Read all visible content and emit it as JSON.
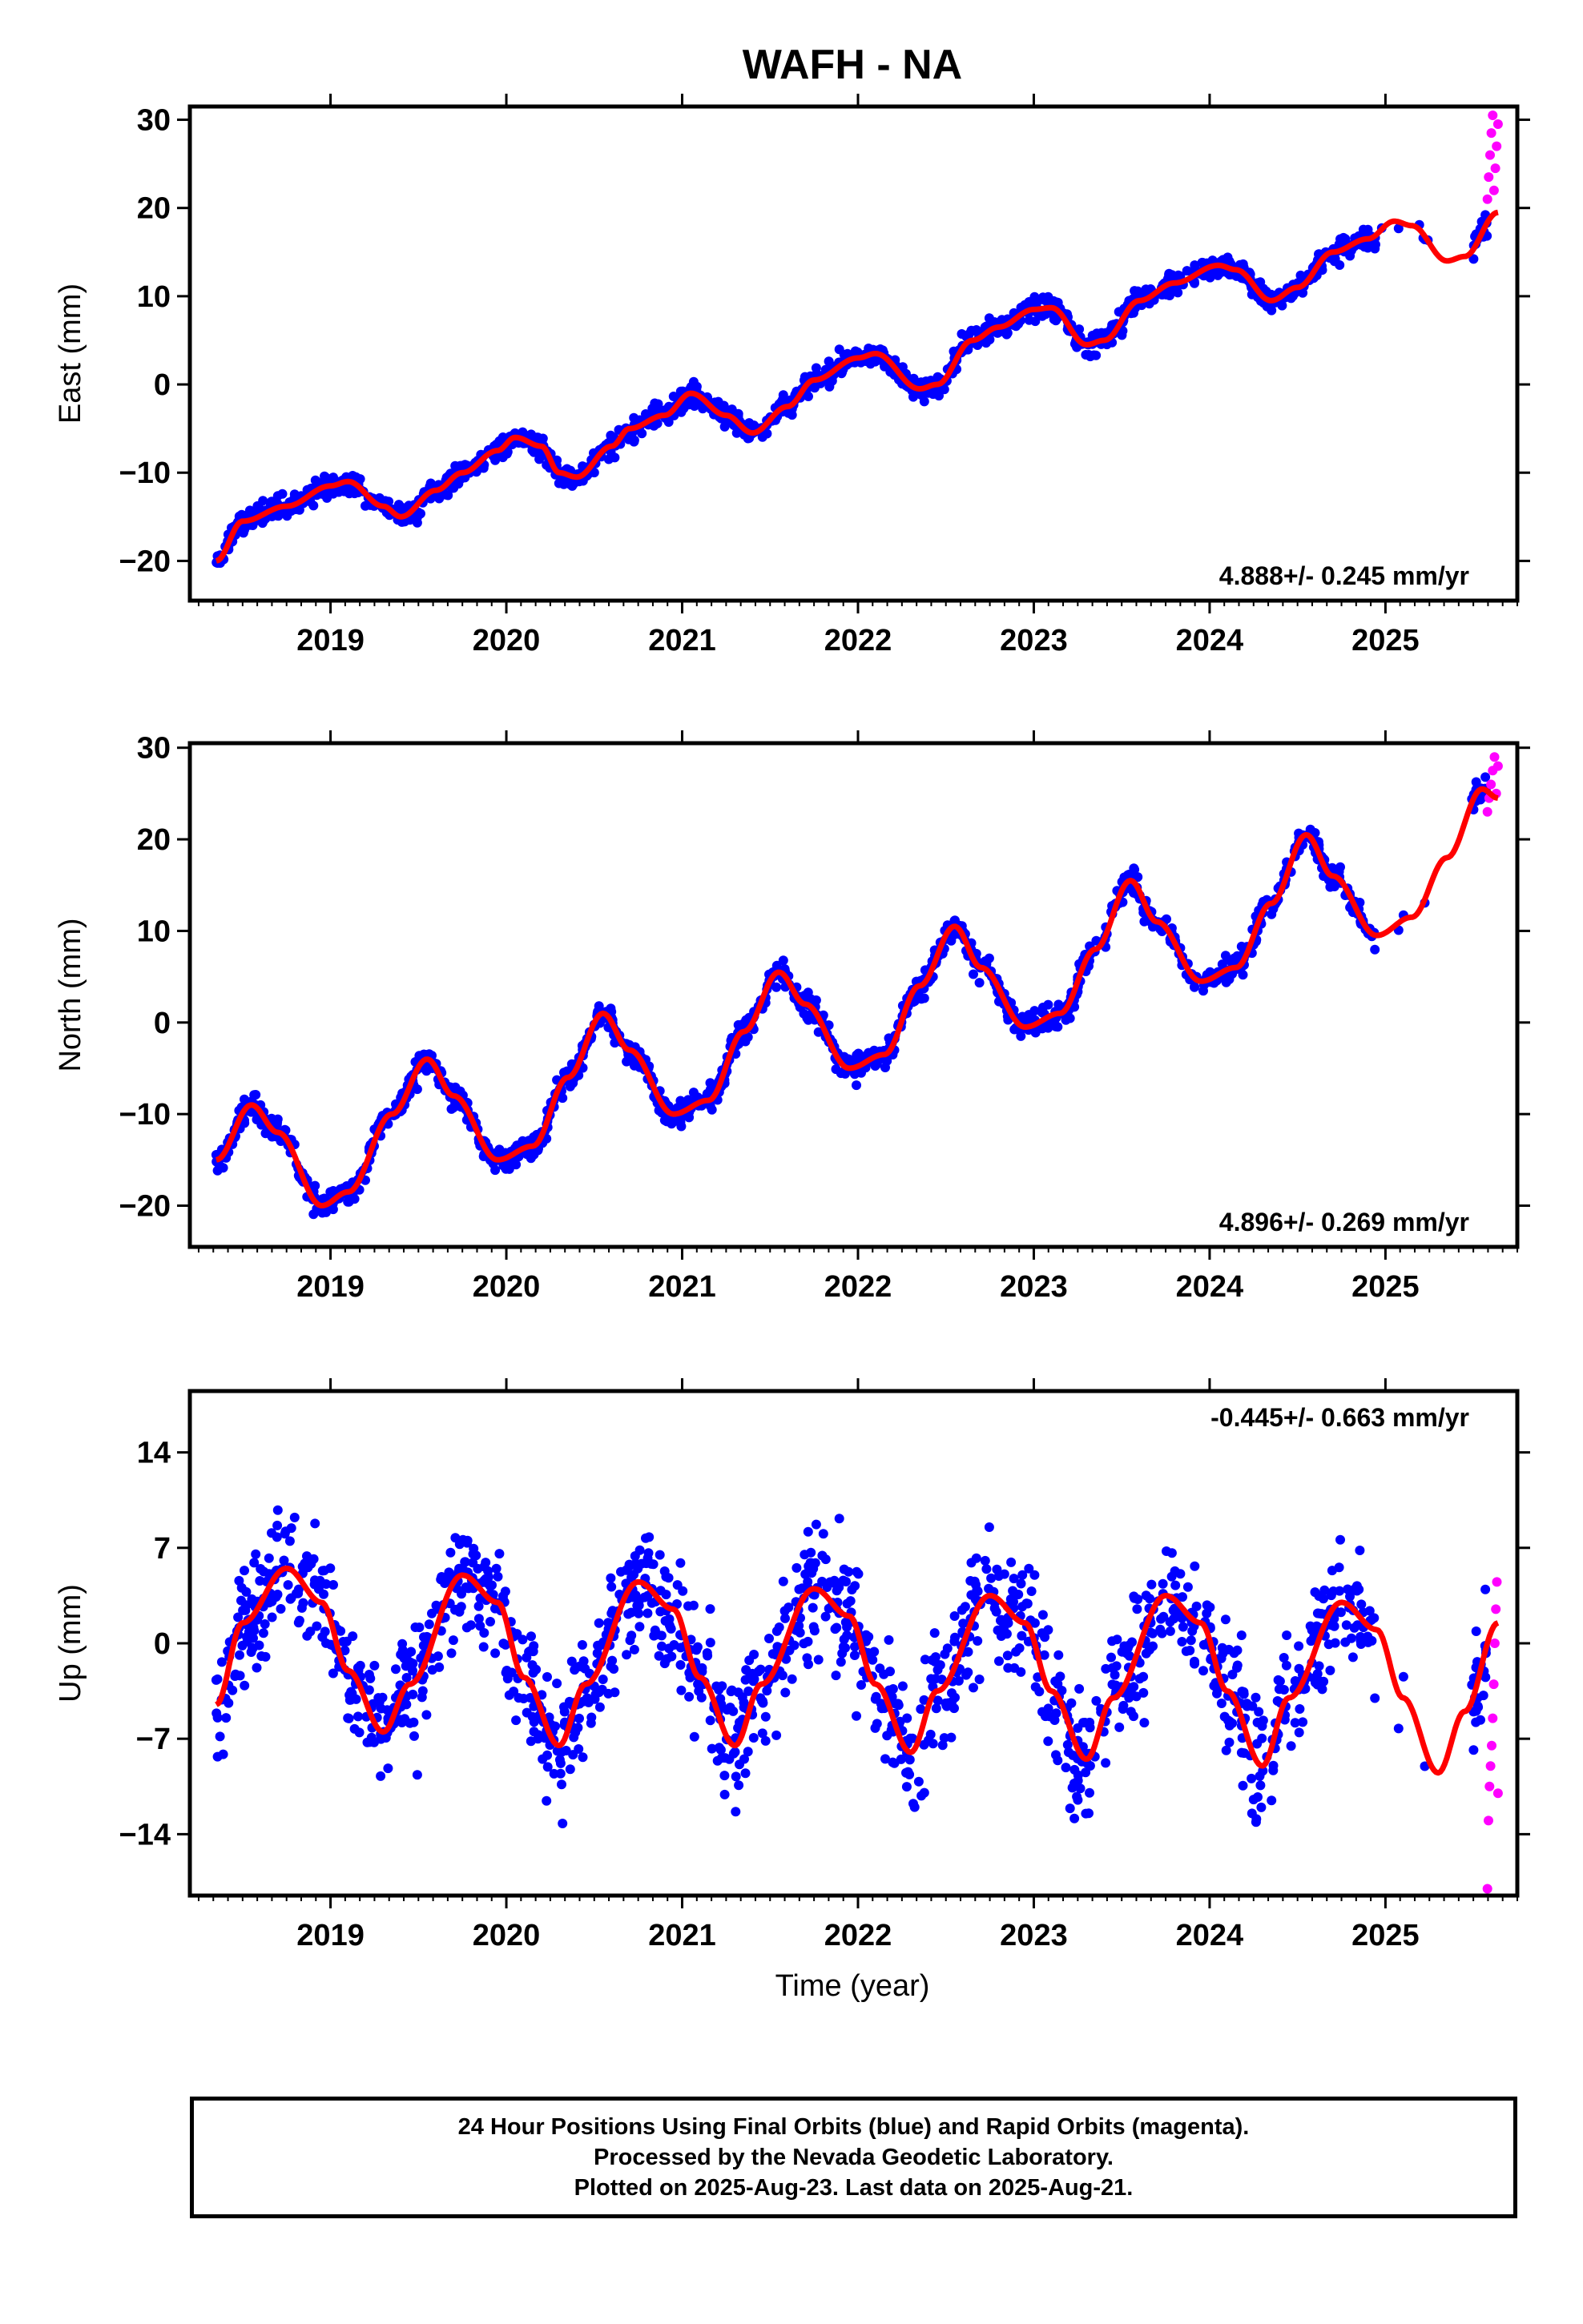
{
  "figure": {
    "title": "WAFH - NA",
    "xlabel": "Time (year)",
    "footer_lines": [
      "24 Hour Positions Using Final Orbits (blue) and Rapid Orbits (magenta).",
      "Processed by the Nevada Geodetic Laboratory.",
      "Plotted on 2025-Aug-23. Last data on 2025-Aug-21."
    ],
    "colors": {
      "final_orbits": "#0000ff",
      "rapid_orbits": "#ff00ff",
      "model_fit": "#ff0000",
      "frame": "#000000"
    }
  },
  "chart_data": [
    {
      "type": "scatter",
      "component": "east",
      "ylabel": "East (mm)",
      "xlim": [
        2018.2,
        2025.75
      ],
      "ylim": [
        -24.5,
        31.5
      ],
      "yticks": [
        -20,
        -10,
        0,
        10,
        20,
        30
      ],
      "xticks": [
        2019,
        2020,
        2021,
        2022,
        2023,
        2024,
        2025
      ],
      "rate_label": "4.888+/- 0.245 mm/yr",
      "rate_position": "bottom-right",
      "data_span": [
        2018.35,
        2025.64
      ],
      "rapid_orbit_span": [
        2025.58,
        2025.64
      ],
      "model_curve": {
        "points": [
          [
            2018.35,
            -20.0
          ],
          [
            2018.5,
            -15.5
          ],
          [
            2018.75,
            -13.8
          ],
          [
            2019.0,
            -11.5
          ],
          [
            2019.1,
            -11.0
          ],
          [
            2019.3,
            -13.8
          ],
          [
            2019.4,
            -15.0
          ],
          [
            2019.6,
            -12.0
          ],
          [
            2019.75,
            -10.0
          ],
          [
            2019.95,
            -7.5
          ],
          [
            2020.05,
            -6.0
          ],
          [
            2020.2,
            -7.0
          ],
          [
            2020.3,
            -10.0
          ],
          [
            2020.4,
            -10.5
          ],
          [
            2020.6,
            -7.0
          ],
          [
            2020.7,
            -5.0
          ],
          [
            2020.9,
            -3.5
          ],
          [
            2021.05,
            -1.0
          ],
          [
            2021.25,
            -3.5
          ],
          [
            2021.4,
            -5.5
          ],
          [
            2021.6,
            -2.5
          ],
          [
            2021.75,
            0.5
          ],
          [
            2022.0,
            3.0
          ],
          [
            2022.1,
            3.5
          ],
          [
            2022.35,
            -0.5
          ],
          [
            2022.45,
            0.0
          ],
          [
            2022.65,
            5.0
          ],
          [
            2022.8,
            6.5
          ],
          [
            2023.0,
            8.5
          ],
          [
            2023.1,
            8.7
          ],
          [
            2023.3,
            4.5
          ],
          [
            2023.4,
            5.0
          ],
          [
            2023.6,
            9.5
          ],
          [
            2023.8,
            11.5
          ],
          [
            2024.05,
            13.5
          ],
          [
            2024.15,
            13.0
          ],
          [
            2024.35,
            9.5
          ],
          [
            2024.5,
            11.0
          ],
          [
            2024.7,
            15.0
          ],
          [
            2024.9,
            16.5
          ],
          [
            2025.05,
            18.5
          ],
          [
            2025.15,
            18.0
          ],
          [
            2025.35,
            14.0
          ],
          [
            2025.45,
            14.5
          ],
          [
            2025.64,
            19.5
          ]
        ]
      },
      "rapid_values": [
        21.0,
        23.5,
        26.0,
        28.5,
        30.5,
        22.0,
        24.5,
        27.0,
        29.5
      ]
    },
    {
      "type": "scatter",
      "component": "north",
      "ylabel": "North (mm)",
      "xlim": [
        2018.2,
        2025.75
      ],
      "ylim": [
        -24.5,
        30.5
      ],
      "yticks": [
        -20,
        -10,
        0,
        10,
        20,
        30
      ],
      "xticks": [
        2019,
        2020,
        2021,
        2022,
        2023,
        2024,
        2025
      ],
      "rate_label": "4.896+/- 0.269 mm/yr",
      "rate_position": "bottom-right",
      "data_span": [
        2018.35,
        2025.64
      ],
      "rapid_orbit_span": [
        2025.58,
        2025.64
      ],
      "model_curve": {
        "points": [
          [
            2018.35,
            -15.0
          ],
          [
            2018.55,
            -9.0
          ],
          [
            2018.7,
            -12.0
          ],
          [
            2018.95,
            -20.0
          ],
          [
            2019.1,
            -18.5
          ],
          [
            2019.35,
            -10.0
          ],
          [
            2019.55,
            -4.0
          ],
          [
            2019.7,
            -8.0
          ],
          [
            2019.95,
            -15.0
          ],
          [
            2020.15,
            -13.5
          ],
          [
            2020.35,
            -6.0
          ],
          [
            2020.55,
            1.0
          ],
          [
            2020.7,
            -3.0
          ],
          [
            2020.95,
            -10.0
          ],
          [
            2021.15,
            -8.5
          ],
          [
            2021.35,
            -1.0
          ],
          [
            2021.55,
            5.5
          ],
          [
            2021.7,
            2.0
          ],
          [
            2021.95,
            -5.0
          ],
          [
            2022.15,
            -3.5
          ],
          [
            2022.35,
            4.0
          ],
          [
            2022.55,
            10.5
          ],
          [
            2022.7,
            6.0
          ],
          [
            2022.95,
            -0.5
          ],
          [
            2023.15,
            1.0
          ],
          [
            2023.35,
            8.0
          ],
          [
            2023.55,
            15.5
          ],
          [
            2023.7,
            11.0
          ],
          [
            2023.95,
            4.5
          ],
          [
            2024.15,
            6.0
          ],
          [
            2024.35,
            13.0
          ],
          [
            2024.55,
            20.5
          ],
          [
            2024.7,
            16.0
          ],
          [
            2024.95,
            9.5
          ],
          [
            2025.15,
            11.5
          ],
          [
            2025.35,
            18.0
          ],
          [
            2025.55,
            25.5
          ],
          [
            2025.64,
            24.5
          ]
        ]
      },
      "rapid_values": [
        23.0,
        24.5,
        26.0,
        27.5,
        29.0,
        25.0,
        28.0
      ]
    },
    {
      "type": "scatter",
      "component": "up",
      "ylabel": "Up (mm)",
      "xlim": [
        2018.2,
        2025.75
      ],
      "ylim": [
        -18.5,
        18.5
      ],
      "yticks": [
        -14,
        -7,
        0,
        7,
        14
      ],
      "xticks": [
        2019,
        2020,
        2021,
        2022,
        2023,
        2024,
        2025
      ],
      "rate_label": "-0.445+/- 0.663 mm/yr",
      "rate_position": "top-right",
      "data_span": [
        2018.35,
        2025.64
      ],
      "rapid_orbit_span": [
        2025.58,
        2025.64
      ],
      "model_curve": {
        "points": [
          [
            2018.35,
            -4.5
          ],
          [
            2018.5,
            1.5
          ],
          [
            2018.75,
            5.5
          ],
          [
            2018.95,
            3.0
          ],
          [
            2019.1,
            -2.0
          ],
          [
            2019.3,
            -6.5
          ],
          [
            2019.45,
            -3.0
          ],
          [
            2019.75,
            5.0
          ],
          [
            2019.95,
            3.0
          ],
          [
            2020.1,
            -2.5
          ],
          [
            2020.3,
            -7.5
          ],
          [
            2020.45,
            -3.0
          ],
          [
            2020.75,
            4.5
          ],
          [
            2020.95,
            2.5
          ],
          [
            2021.1,
            -2.5
          ],
          [
            2021.3,
            -7.5
          ],
          [
            2021.45,
            -3.0
          ],
          [
            2021.75,
            4.0
          ],
          [
            2021.95,
            2.0
          ],
          [
            2022.1,
            -3.0
          ],
          [
            2022.3,
            -8.0
          ],
          [
            2022.45,
            -3.5
          ],
          [
            2022.75,
            3.5
          ],
          [
            2022.95,
            1.5
          ],
          [
            2023.1,
            -3.5
          ],
          [
            2023.3,
            -8.5
          ],
          [
            2023.45,
            -4.0
          ],
          [
            2023.75,
            3.5
          ],
          [
            2023.95,
            1.5
          ],
          [
            2024.1,
            -3.5
          ],
          [
            2024.3,
            -9.0
          ],
          [
            2024.45,
            -4.0
          ],
          [
            2024.75,
            3.0
          ],
          [
            2024.95,
            1.0
          ],
          [
            2025.1,
            -4.0
          ],
          [
            2025.3,
            -9.5
          ],
          [
            2025.45,
            -5.0
          ],
          [
            2025.64,
            1.5
          ]
        ]
      },
      "rapid_values": [
        -18.0,
        -13.0,
        -10.5,
        -9.0,
        -7.5,
        -5.5,
        -3.0,
        0.0,
        2.5,
        4.5,
        -11.0
      ]
    }
  ]
}
